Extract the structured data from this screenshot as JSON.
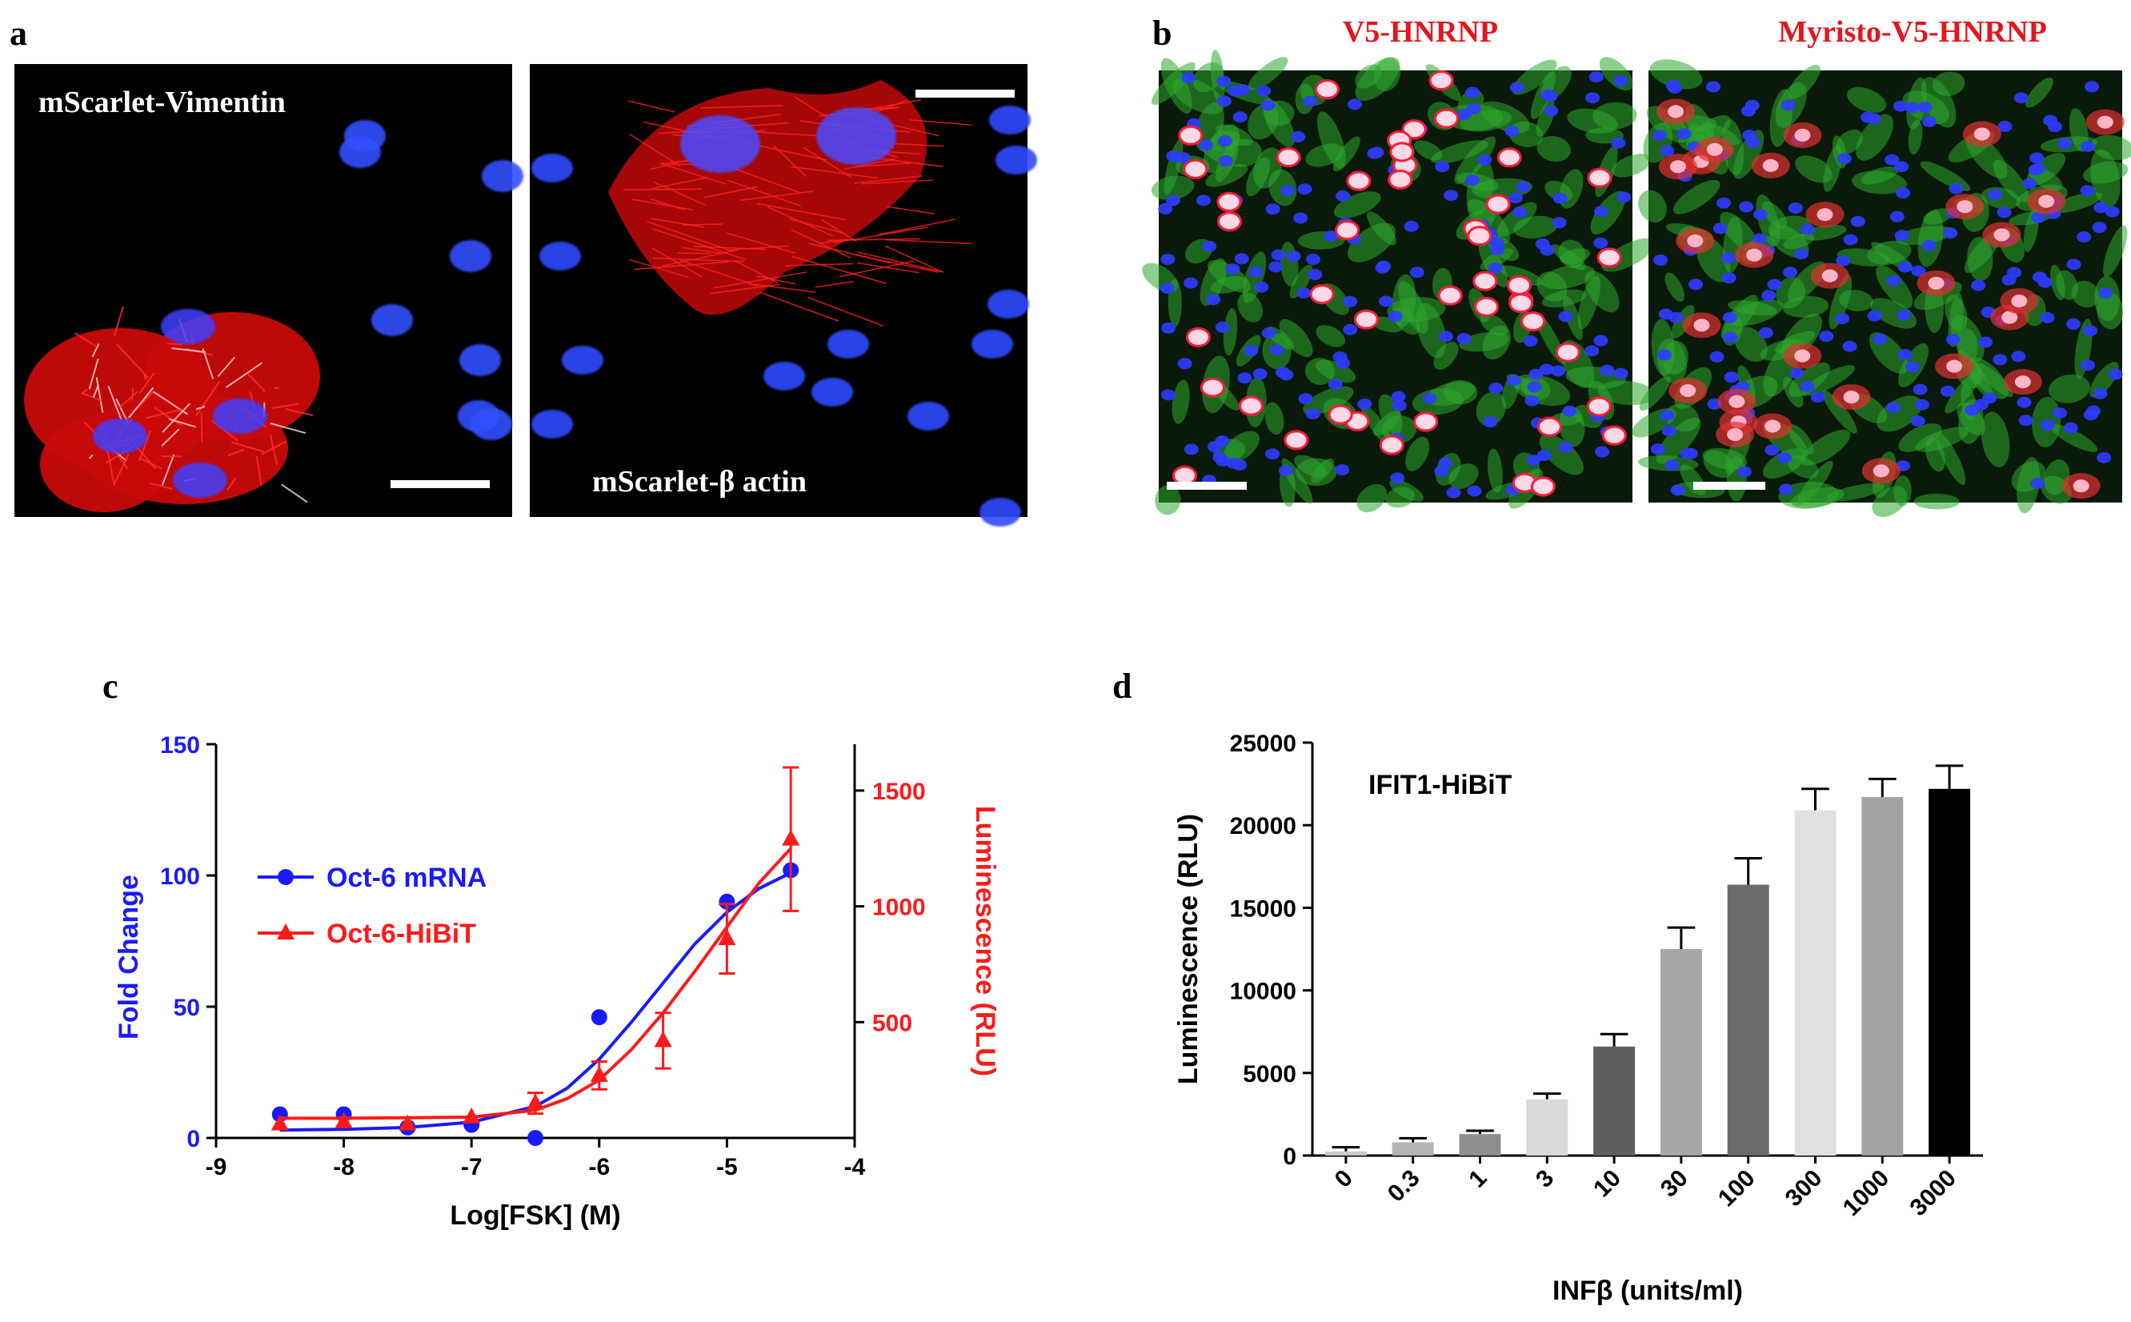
{
  "panels": {
    "a": {
      "letter": "a",
      "left_label": "mScarlet-Vimentin",
      "right_label": "mScarlet-β actin"
    },
    "b": {
      "letter": "b",
      "left_title": "V5-HNRNP",
      "right_title": "Myristo-V5-HNRNP"
    },
    "c": {
      "letter": "c"
    },
    "d": {
      "letter": "d"
    }
  },
  "colors": {
    "blue": "#1a1aff",
    "red": "#ff1a1a",
    "title_red": "#e8141c",
    "black": "#000000"
  },
  "chart_data": [
    {
      "type": "line",
      "panel": "c",
      "xlabel": "Log[FSK] (M)",
      "xlim": [
        -9,
        -4
      ],
      "x_ticks": [
        "-9",
        "-8",
        "-7",
        "-6",
        "-5",
        "-4"
      ],
      "ylabel_left": "Fold Change",
      "ylim_left": [
        0,
        150
      ],
      "y_ticks_left": [
        "0",
        "50",
        "100",
        "150"
      ],
      "ylabel_right": "Luminescence (RLU)",
      "ylim_right": [
        0,
        1700
      ],
      "y_ticks_right": [
        "500",
        "1000",
        "1500"
      ],
      "legend_position": "upper-left",
      "grid": false,
      "series": [
        {
          "name": "Oct-6 mRNA",
          "axis": "left",
          "marker": "circle",
          "color": "#1a1aff",
          "x": [
            -8.5,
            -8,
            -7.5,
            -7,
            -6.5,
            -6,
            -5,
            -4.5
          ],
          "y": [
            9,
            9,
            4,
            5,
            0,
            46,
            90,
            102
          ],
          "fit": [
            [
              -8.5,
              3
            ],
            [
              -8,
              3.3
            ],
            [
              -7.5,
              4
            ],
            [
              -7,
              6
            ],
            [
              -6.5,
              12
            ],
            [
              -6.25,
              19
            ],
            [
              -6,
              30
            ],
            [
              -5.75,
              44
            ],
            [
              -5.5,
              59
            ],
            [
              -5.25,
              74
            ],
            [
              -5,
              86
            ],
            [
              -4.75,
              95
            ],
            [
              -4.5,
              101
            ]
          ]
        },
        {
          "name": "Oct-6-HiBiT",
          "axis": "right",
          "marker": "triangle",
          "color": "#ff1a1a",
          "x": [
            -8.5,
            -8,
            -7.5,
            -7,
            -6.5,
            -6,
            -5.5,
            -5,
            -4.5
          ],
          "y": [
            60,
            70,
            60,
            90,
            150,
            270,
            420,
            860,
            1290
          ],
          "yerr": [
            0,
            0,
            0,
            0,
            45,
            60,
            120,
            150,
            310
          ],
          "fit": [
            [
              -8.5,
              85
            ],
            [
              -8,
              85
            ],
            [
              -7.5,
              87
            ],
            [
              -7,
              90
            ],
            [
              -6.5,
              120
            ],
            [
              -6.25,
              170
            ],
            [
              -6,
              250
            ],
            [
              -5.75,
              380
            ],
            [
              -5.5,
              540
            ],
            [
              -5.25,
              720
            ],
            [
              -5,
              910
            ],
            [
              -4.75,
              1100
            ],
            [
              -4.5,
              1250
            ]
          ]
        }
      ]
    },
    {
      "type": "bar",
      "panel": "d",
      "annotation": "IFIT1-HiBiT",
      "xlabel": "INFβ (units/ml)",
      "ylabel": "Luminescence (RLU)",
      "ylim": [
        0,
        25000
      ],
      "y_ticks": [
        "0",
        "5000",
        "10000",
        "15000",
        "20000",
        "25000"
      ],
      "categories": [
        "0",
        "0.3",
        "1",
        "3",
        "10",
        "30",
        "100",
        "300",
        "1000",
        "3000"
      ],
      "values": [
        250,
        800,
        1300,
        3400,
        6600,
        12500,
        16400,
        20900,
        21700,
        22200
      ],
      "errors": [
        250,
        250,
        200,
        350,
        750,
        1300,
        1600,
        1300,
        1100,
        1400
      ],
      "bar_colors": [
        "#c9c9c9",
        "#b3b3b3",
        "#8f8f8f",
        "#d9d9d9",
        "#5f5f5f",
        "#a6a6a6",
        "#6b6b6b",
        "#e0e0e0",
        "#a2a2a2",
        "#000000"
      ],
      "grid": false
    }
  ]
}
